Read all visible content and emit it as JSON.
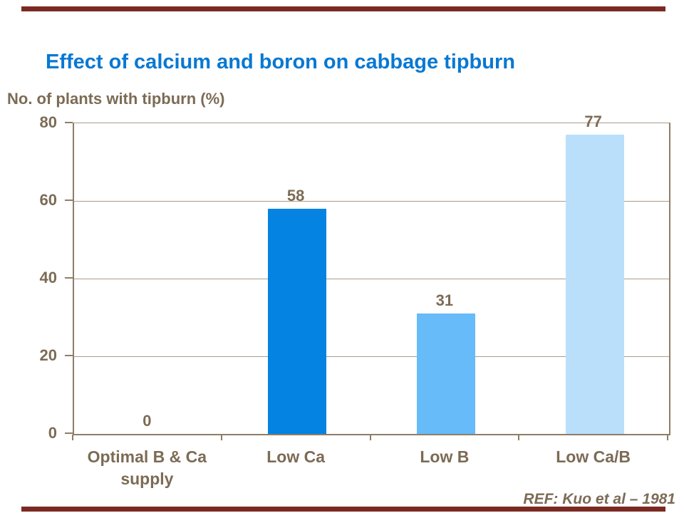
{
  "slide": {
    "title": "Effect of calcium and boron on cabbage tipburn",
    "reference": "REF: Kuo et al – 1981"
  },
  "colors": {
    "title_blue": "#0878D2",
    "text_brown": "#7C6B55",
    "axis_brown": "#8E7D68",
    "grid_tan": "#AC9C87",
    "rule_maroon": "#7B2A22",
    "background": "#FFFFFF"
  },
  "chart_data": {
    "type": "bar",
    "title": "Effect of calcium and boron on cabbage tipburn",
    "ylabel": "No. of plants with tipburn (%)",
    "xlabel": "",
    "categories": [
      "Optimal B & Ca supply",
      "Low Ca",
      "Low B",
      "Low Ca/B"
    ],
    "tick_labels": [
      "Optimal B & Ca\nsupply",
      "Low Ca",
      "Low B",
      "Low Ca/B"
    ],
    "values": [
      0,
      58,
      31,
      77
    ],
    "data_labels": [
      "0",
      "58",
      "31",
      "77"
    ],
    "bar_colors": [
      "#0483E2",
      "#0483E2",
      "#66BBF8",
      "#BADFFB"
    ],
    "ylim": [
      0,
      80
    ],
    "yticks": [
      0,
      20,
      40,
      60,
      80
    ],
    "grid": true,
    "legend": false,
    "annotation": "REF: Kuo et al – 1981"
  }
}
